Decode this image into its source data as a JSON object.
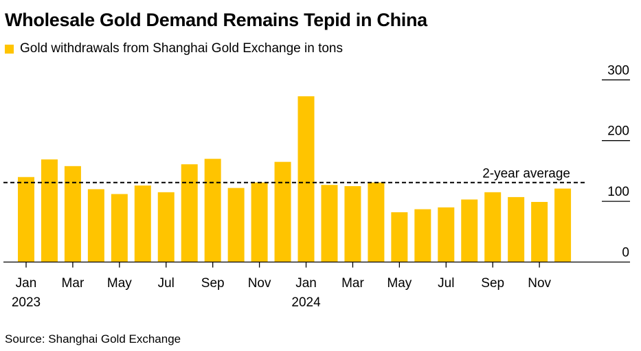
{
  "chart_data": {
    "type": "bar",
    "title": "Wholesale Gold Demand Remains Tepid in China",
    "legend": "Gold withdrawals from Shanghai Gold Exchange in tons",
    "source": "Source: Shanghai Gold Exchange",
    "color": "#FFC400",
    "categories": [
      "Jan 2023",
      "Feb 2023",
      "Mar 2023",
      "Apr 2023",
      "May 2023",
      "Jun 2023",
      "Jul 2023",
      "Aug 2023",
      "Sep 2023",
      "Oct 2023",
      "Nov 2023",
      "Dec 2023",
      "Jan 2024",
      "Feb 2024",
      "Mar 2024",
      "Apr 2024",
      "May 2024",
      "Jun 2024",
      "Jul 2024",
      "Aug 2024",
      "Sep 2024",
      "Oct 2024",
      "Nov 2024",
      "Dec 2024"
    ],
    "values": [
      140,
      169,
      158,
      120,
      112,
      126,
      115,
      161,
      170,
      122,
      131,
      165,
      273,
      127,
      125,
      131,
      82,
      87,
      90,
      103,
      115,
      107,
      99,
      121
    ],
    "average": {
      "label": "2-year average",
      "value": 131
    },
    "ylim": [
      0,
      300
    ],
    "yticks": [
      "0",
      "100",
      "200",
      "300"
    ],
    "xtick_labels": [
      {
        "index": 0,
        "label": "Jan",
        "year": "2023"
      },
      {
        "index": 2,
        "label": "Mar"
      },
      {
        "index": 4,
        "label": "May"
      },
      {
        "index": 6,
        "label": "Jul"
      },
      {
        "index": 8,
        "label": "Sep"
      },
      {
        "index": 10,
        "label": "Nov"
      },
      {
        "index": 12,
        "label": "Jan",
        "year": "2024"
      },
      {
        "index": 14,
        "label": "Mar"
      },
      {
        "index": 16,
        "label": "May"
      },
      {
        "index": 18,
        "label": "Jul"
      },
      {
        "index": 20,
        "label": "Sep"
      },
      {
        "index": 22,
        "label": "Nov"
      }
    ],
    "grid": "y-axis short ticks at right",
    "legend_position": "top-left"
  }
}
